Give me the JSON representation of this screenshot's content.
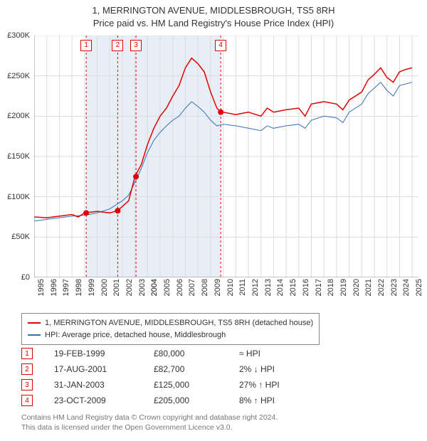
{
  "title": {
    "line1": "1, MERRINGTON AVENUE, MIDDLESBROUGH, TS5 8RH",
    "line2": "Price paid vs. HM Land Registry's House Price Index (HPI)"
  },
  "chart": {
    "type": "line",
    "background_color": "#ffffff",
    "grid_color": "#dcdcdc",
    "highlight_band_color": "#e8eef6",
    "xlim": [
      1995,
      2025.5
    ],
    "ylim": [
      0,
      300000
    ],
    "y_ticks": [
      0,
      50000,
      100000,
      150000,
      200000,
      250000,
      300000
    ],
    "y_tick_labels": [
      "£0",
      "£50K",
      "£100K",
      "£150K",
      "£200K",
      "£250K",
      "£300K"
    ],
    "x_ticks": [
      1995,
      1996,
      1997,
      1998,
      1999,
      2000,
      2001,
      2002,
      2003,
      2004,
      2004,
      2005,
      2006,
      2007,
      2008,
      2009,
      2010,
      2011,
      2012,
      2013,
      2014,
      2015,
      2016,
      2017,
      2018,
      2019,
      2020,
      2021,
      2022,
      2023,
      2024,
      2025
    ],
    "x_tick_labels": [
      "1995",
      "1996",
      "1997",
      "1998",
      "1999",
      "2000",
      "2001",
      "2002",
      "2003",
      "2004",
      "2004",
      "2005",
      "2006",
      "2007",
      "2008",
      "2009",
      "2010",
      "2011",
      "2012",
      "2013",
      "2014",
      "2015",
      "2016",
      "2017",
      "2018",
      "2019",
      "2020",
      "2021",
      "2022",
      "2023",
      "2024",
      "2025"
    ],
    "series": [
      {
        "name": "property",
        "label": "1, MERRINGTON AVENUE, MIDDLESBROUGH, TS5 8RH (detached house)",
        "color": "#e00000",
        "width": 1.5,
        "data": [
          [
            1995,
            75000
          ],
          [
            1996,
            74000
          ],
          [
            1997,
            76000
          ],
          [
            1998,
            78000
          ],
          [
            1998.5,
            75000
          ],
          [
            1999,
            80000
          ],
          [
            2000,
            82000
          ],
          [
            2001,
            80000
          ],
          [
            2001.6,
            82700
          ],
          [
            2002,
            88000
          ],
          [
            2002.5,
            95000
          ],
          [
            2003,
            125000
          ],
          [
            2003.5,
            140000
          ],
          [
            2004,
            165000
          ],
          [
            2004.5,
            185000
          ],
          [
            2005,
            200000
          ],
          [
            2005.5,
            210000
          ],
          [
            2006,
            225000
          ],
          [
            2006.5,
            238000
          ],
          [
            2007,
            260000
          ],
          [
            2007.5,
            272000
          ],
          [
            2008,
            265000
          ],
          [
            2008.5,
            255000
          ],
          [
            2009,
            230000
          ],
          [
            2009.5,
            210000
          ],
          [
            2009.8,
            205000
          ],
          [
            2010,
            205000
          ],
          [
            2011,
            202000
          ],
          [
            2012,
            205000
          ],
          [
            2013,
            200000
          ],
          [
            2013.5,
            210000
          ],
          [
            2014,
            205000
          ],
          [
            2015,
            208000
          ],
          [
            2016,
            210000
          ],
          [
            2016.5,
            200000
          ],
          [
            2017,
            215000
          ],
          [
            2018,
            218000
          ],
          [
            2019,
            215000
          ],
          [
            2019.5,
            208000
          ],
          [
            2020,
            220000
          ],
          [
            2021,
            230000
          ],
          [
            2021.5,
            245000
          ],
          [
            2022,
            252000
          ],
          [
            2022.5,
            260000
          ],
          [
            2023,
            248000
          ],
          [
            2023.5,
            242000
          ],
          [
            2024,
            255000
          ],
          [
            2024.5,
            258000
          ],
          [
            2025,
            260000
          ]
        ]
      },
      {
        "name": "hpi",
        "label": "HPI: Average price, detached house, Middlesbrough",
        "color": "#3a6fb7",
        "width": 1,
        "data": [
          [
            1995,
            70000
          ],
          [
            1996,
            72000
          ],
          [
            1997,
            74000
          ],
          [
            1998,
            76000
          ],
          [
            1999,
            77000
          ],
          [
            2000,
            80000
          ],
          [
            2001,
            85000
          ],
          [
            2002,
            95000
          ],
          [
            2002.5,
            102000
          ],
          [
            2003,
            118000
          ],
          [
            2003.5,
            135000
          ],
          [
            2004,
            155000
          ],
          [
            2004.5,
            170000
          ],
          [
            2005,
            180000
          ],
          [
            2005.5,
            188000
          ],
          [
            2006,
            195000
          ],
          [
            2006.5,
            200000
          ],
          [
            2007,
            210000
          ],
          [
            2007.5,
            218000
          ],
          [
            2008,
            212000
          ],
          [
            2008.5,
            205000
          ],
          [
            2009,
            195000
          ],
          [
            2009.5,
            188000
          ],
          [
            2010,
            190000
          ],
          [
            2011,
            188000
          ],
          [
            2012,
            185000
          ],
          [
            2013,
            182000
          ],
          [
            2013.5,
            188000
          ],
          [
            2014,
            185000
          ],
          [
            2015,
            188000
          ],
          [
            2016,
            190000
          ],
          [
            2016.5,
            185000
          ],
          [
            2017,
            195000
          ],
          [
            2018,
            200000
          ],
          [
            2019,
            198000
          ],
          [
            2019.5,
            192000
          ],
          [
            2020,
            205000
          ],
          [
            2021,
            215000
          ],
          [
            2021.5,
            228000
          ],
          [
            2022,
            235000
          ],
          [
            2022.5,
            242000
          ],
          [
            2023,
            232000
          ],
          [
            2023.5,
            225000
          ],
          [
            2024,
            238000
          ],
          [
            2024.5,
            240000
          ],
          [
            2025,
            242000
          ]
        ]
      }
    ],
    "sale_markers": [
      {
        "n": "1",
        "x": 1999.13,
        "y": 80000
      },
      {
        "n": "2",
        "x": 2001.63,
        "y": 82700
      },
      {
        "n": "3",
        "x": 2003.08,
        "y": 125000
      },
      {
        "n": "4",
        "x": 2009.81,
        "y": 205000
      }
    ],
    "vertical_marker_color": "#e00000",
    "sale_dot_color": "#e00000",
    "sale_dot_radius": 4,
    "marker_box_top_y": 288000
  },
  "legend": {
    "items": [
      {
        "color": "#e00000",
        "label": "1, MERRINGTON AVENUE, MIDDLESBROUGH, TS5 8RH (detached house)"
      },
      {
        "color": "#3a6fb7",
        "label": "HPI: Average price, detached house, Middlesbrough"
      }
    ]
  },
  "sales_table": [
    {
      "n": "1",
      "date": "19-FEB-1999",
      "price": "£80,000",
      "cmp": "≈ HPI"
    },
    {
      "n": "2",
      "date": "17-AUG-2001",
      "price": "£82,700",
      "cmp": "2% ↓ HPI"
    },
    {
      "n": "3",
      "date": "31-JAN-2003",
      "price": "£125,000",
      "cmp": "27% ↑ HPI"
    },
    {
      "n": "4",
      "date": "23-OCT-2009",
      "price": "£205,000",
      "cmp": "8% ↑ HPI"
    }
  ],
  "footer": {
    "line1": "Contains HM Land Registry data © Crown copyright and database right 2024.",
    "line2": "This data is licensed under the Open Government Licence v3.0."
  }
}
